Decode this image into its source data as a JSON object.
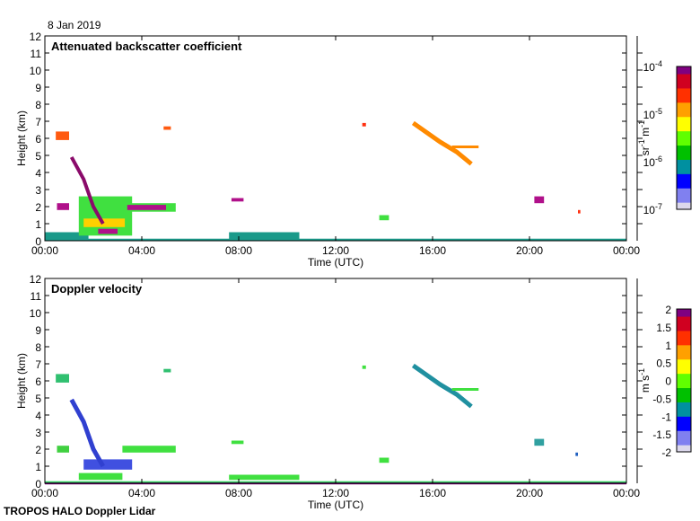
{
  "date_label": "8 Jan 2019",
  "footer": "TROPOS HALO Doppler Lidar",
  "chart_data": [
    {
      "type": "heatmap",
      "title": "Attenuated backscatter coefficient",
      "xlabel": "Time (UTC)",
      "ylabel": "Height (km)",
      "xlim": [
        0,
        24
      ],
      "ylim": [
        0,
        12
      ],
      "xticks": [
        "00:00",
        "04:00",
        "08:00",
        "12:00",
        "16:00",
        "20:00",
        "00:00"
      ],
      "yticks": [
        "0",
        "1",
        "2",
        "3",
        "4",
        "5",
        "6",
        "7",
        "8",
        "9",
        "10",
        "11",
        "12"
      ],
      "colorbar": {
        "label": "sr-1 m-1",
        "scale": "log",
        "range": [
          1e-07,
          0.0001
        ],
        "ticks": [
          "10-7",
          "10-6",
          "10-5",
          "10-4"
        ]
      },
      "features": [
        {
          "t": [
            0.0,
            24.0
          ],
          "h": [
            0.0,
            0.12
          ],
          "c": "#1a9a8a"
        },
        {
          "t": [
            0.0,
            1.8
          ],
          "h": [
            0.0,
            0.5
          ],
          "c": "#1a9a8a"
        },
        {
          "t": [
            7.6,
            10.5
          ],
          "h": [
            0.1,
            0.5
          ],
          "c": "#1a9a8a"
        },
        {
          "t": [
            0.45,
            1.0
          ],
          "h": [
            5.9,
            6.4
          ],
          "c": "#ff5a10"
        },
        {
          "t": [
            1.4,
            3.6
          ],
          "h": [
            0.3,
            2.6
          ],
          "c": "#40e040"
        },
        {
          "t": [
            1.6,
            3.3
          ],
          "h": [
            0.8,
            1.3
          ],
          "c": "#ffd000"
        },
        {
          "t": [
            2.2,
            3.0
          ],
          "h": [
            0.4,
            0.7
          ],
          "c": "#b0108a"
        },
        {
          "t": [
            0.5,
            1.0
          ],
          "h": [
            1.8,
            2.2
          ],
          "c": "#b0108a"
        },
        {
          "t": [
            3.2,
            5.4
          ],
          "h": [
            1.7,
            2.2
          ],
          "c": "#40e040"
        },
        {
          "t": [
            3.4,
            5.0
          ],
          "h": [
            1.8,
            2.1
          ],
          "c": "#b0108a"
        },
        {
          "t": [
            4.9,
            5.2
          ],
          "h": [
            6.5,
            6.7
          ],
          "c": "#ff5a10"
        },
        {
          "t": [
            7.7,
            8.2
          ],
          "h": [
            2.3,
            2.5
          ],
          "c": "#b0108a"
        },
        {
          "t": [
            13.1,
            13.25
          ],
          "h": [
            6.7,
            6.9
          ],
          "c": "#ff3010"
        },
        {
          "t": [
            13.8,
            14.2
          ],
          "h": [
            1.2,
            1.5
          ],
          "c": "#40e040"
        },
        {
          "t": [
            20.2,
            20.6
          ],
          "h": [
            2.2,
            2.6
          ],
          "c": "#b0108a"
        },
        {
          "t": [
            22.0,
            22.1
          ],
          "h": [
            1.6,
            1.8
          ],
          "c": "#ff3010"
        }
      ],
      "streaks": [
        {
          "pts": [
            [
              1.1,
              4.9
            ],
            [
              1.6,
              3.6
            ],
            [
              2.0,
              2.0
            ],
            [
              2.4,
              1.0
            ]
          ],
          "c": "#8a0a6a",
          "w": 4
        },
        {
          "pts": [
            [
              15.2,
              6.9
            ],
            [
              16.3,
              5.8
            ],
            [
              17.0,
              5.2
            ],
            [
              17.6,
              4.5
            ]
          ],
          "c": "#ff8a00",
          "w": 5
        },
        {
          "pts": [
            [
              16.8,
              5.5
            ],
            [
              17.9,
              5.5
            ]
          ],
          "c": "#ff8a00",
          "w": 3
        }
      ]
    },
    {
      "type": "heatmap",
      "title": "Doppler velocity",
      "xlabel": "Time (UTC)",
      "ylabel": "Height (km)",
      "xlim": [
        0,
        24
      ],
      "ylim": [
        0,
        12
      ],
      "xticks": [
        "00:00",
        "04:00",
        "08:00",
        "12:00",
        "16:00",
        "20:00",
        "00:00"
      ],
      "yticks": [
        "0",
        "1",
        "2",
        "3",
        "4",
        "5",
        "6",
        "7",
        "8",
        "9",
        "10",
        "11",
        "12"
      ],
      "colorbar": {
        "label": "m s-1",
        "scale": "linear",
        "range": [
          -2,
          2
        ],
        "ticks": [
          "2",
          "1.5",
          "1",
          "0.5",
          "0",
          "-0.5",
          "-1",
          "-1.5",
          "-2"
        ]
      },
      "features": [
        {
          "t": [
            0.0,
            24.0
          ],
          "h": [
            0.0,
            0.12
          ],
          "c": "#30d060"
        },
        {
          "t": [
            0.0,
            24.0
          ],
          "h": [
            0.0,
            0.04
          ],
          "c": "#800080"
        },
        {
          "t": [
            7.6,
            10.5
          ],
          "h": [
            0.2,
            0.5
          ],
          "c": "#40e040"
        },
        {
          "t": [
            0.45,
            1.0
          ],
          "h": [
            5.9,
            6.4
          ],
          "c": "#30c070"
        },
        {
          "t": [
            1.6,
            3.6
          ],
          "h": [
            0.8,
            1.4
          ],
          "c": "#4050e0"
        },
        {
          "t": [
            1.4,
            3.2
          ],
          "h": [
            0.2,
            0.6
          ],
          "c": "#40e040"
        },
        {
          "t": [
            0.5,
            1.0
          ],
          "h": [
            1.8,
            2.2
          ],
          "c": "#40d040"
        },
        {
          "t": [
            3.2,
            5.4
          ],
          "h": [
            1.8,
            2.2
          ],
          "c": "#40e040"
        },
        {
          "t": [
            4.9,
            5.2
          ],
          "h": [
            6.5,
            6.7
          ],
          "c": "#30c070"
        },
        {
          "t": [
            7.7,
            8.2
          ],
          "h": [
            2.3,
            2.5
          ],
          "c": "#40e040"
        },
        {
          "t": [
            13.1,
            13.25
          ],
          "h": [
            6.7,
            6.9
          ],
          "c": "#40e040"
        },
        {
          "t": [
            13.8,
            14.2
          ],
          "h": [
            1.2,
            1.5
          ],
          "c": "#40e040"
        },
        {
          "t": [
            20.2,
            20.6
          ],
          "h": [
            2.2,
            2.6
          ],
          "c": "#30a0a0"
        },
        {
          "t": [
            21.9,
            22.0
          ],
          "h": [
            1.6,
            1.8
          ],
          "c": "#2060c0"
        }
      ],
      "streaks": [
        {
          "pts": [
            [
              1.1,
              4.9
            ],
            [
              1.6,
              3.6
            ],
            [
              2.0,
              2.0
            ],
            [
              2.4,
              1.0
            ]
          ],
          "c": "#3040d0",
          "w": 5
        },
        {
          "pts": [
            [
              15.2,
              6.9
            ],
            [
              16.3,
              5.8
            ],
            [
              17.0,
              5.2
            ],
            [
              17.6,
              4.5
            ]
          ],
          "c": "#2090a0",
          "w": 5
        },
        {
          "pts": [
            [
              16.8,
              5.5
            ],
            [
              17.9,
              5.5
            ]
          ],
          "c": "#40e040",
          "w": 3
        }
      ]
    }
  ]
}
